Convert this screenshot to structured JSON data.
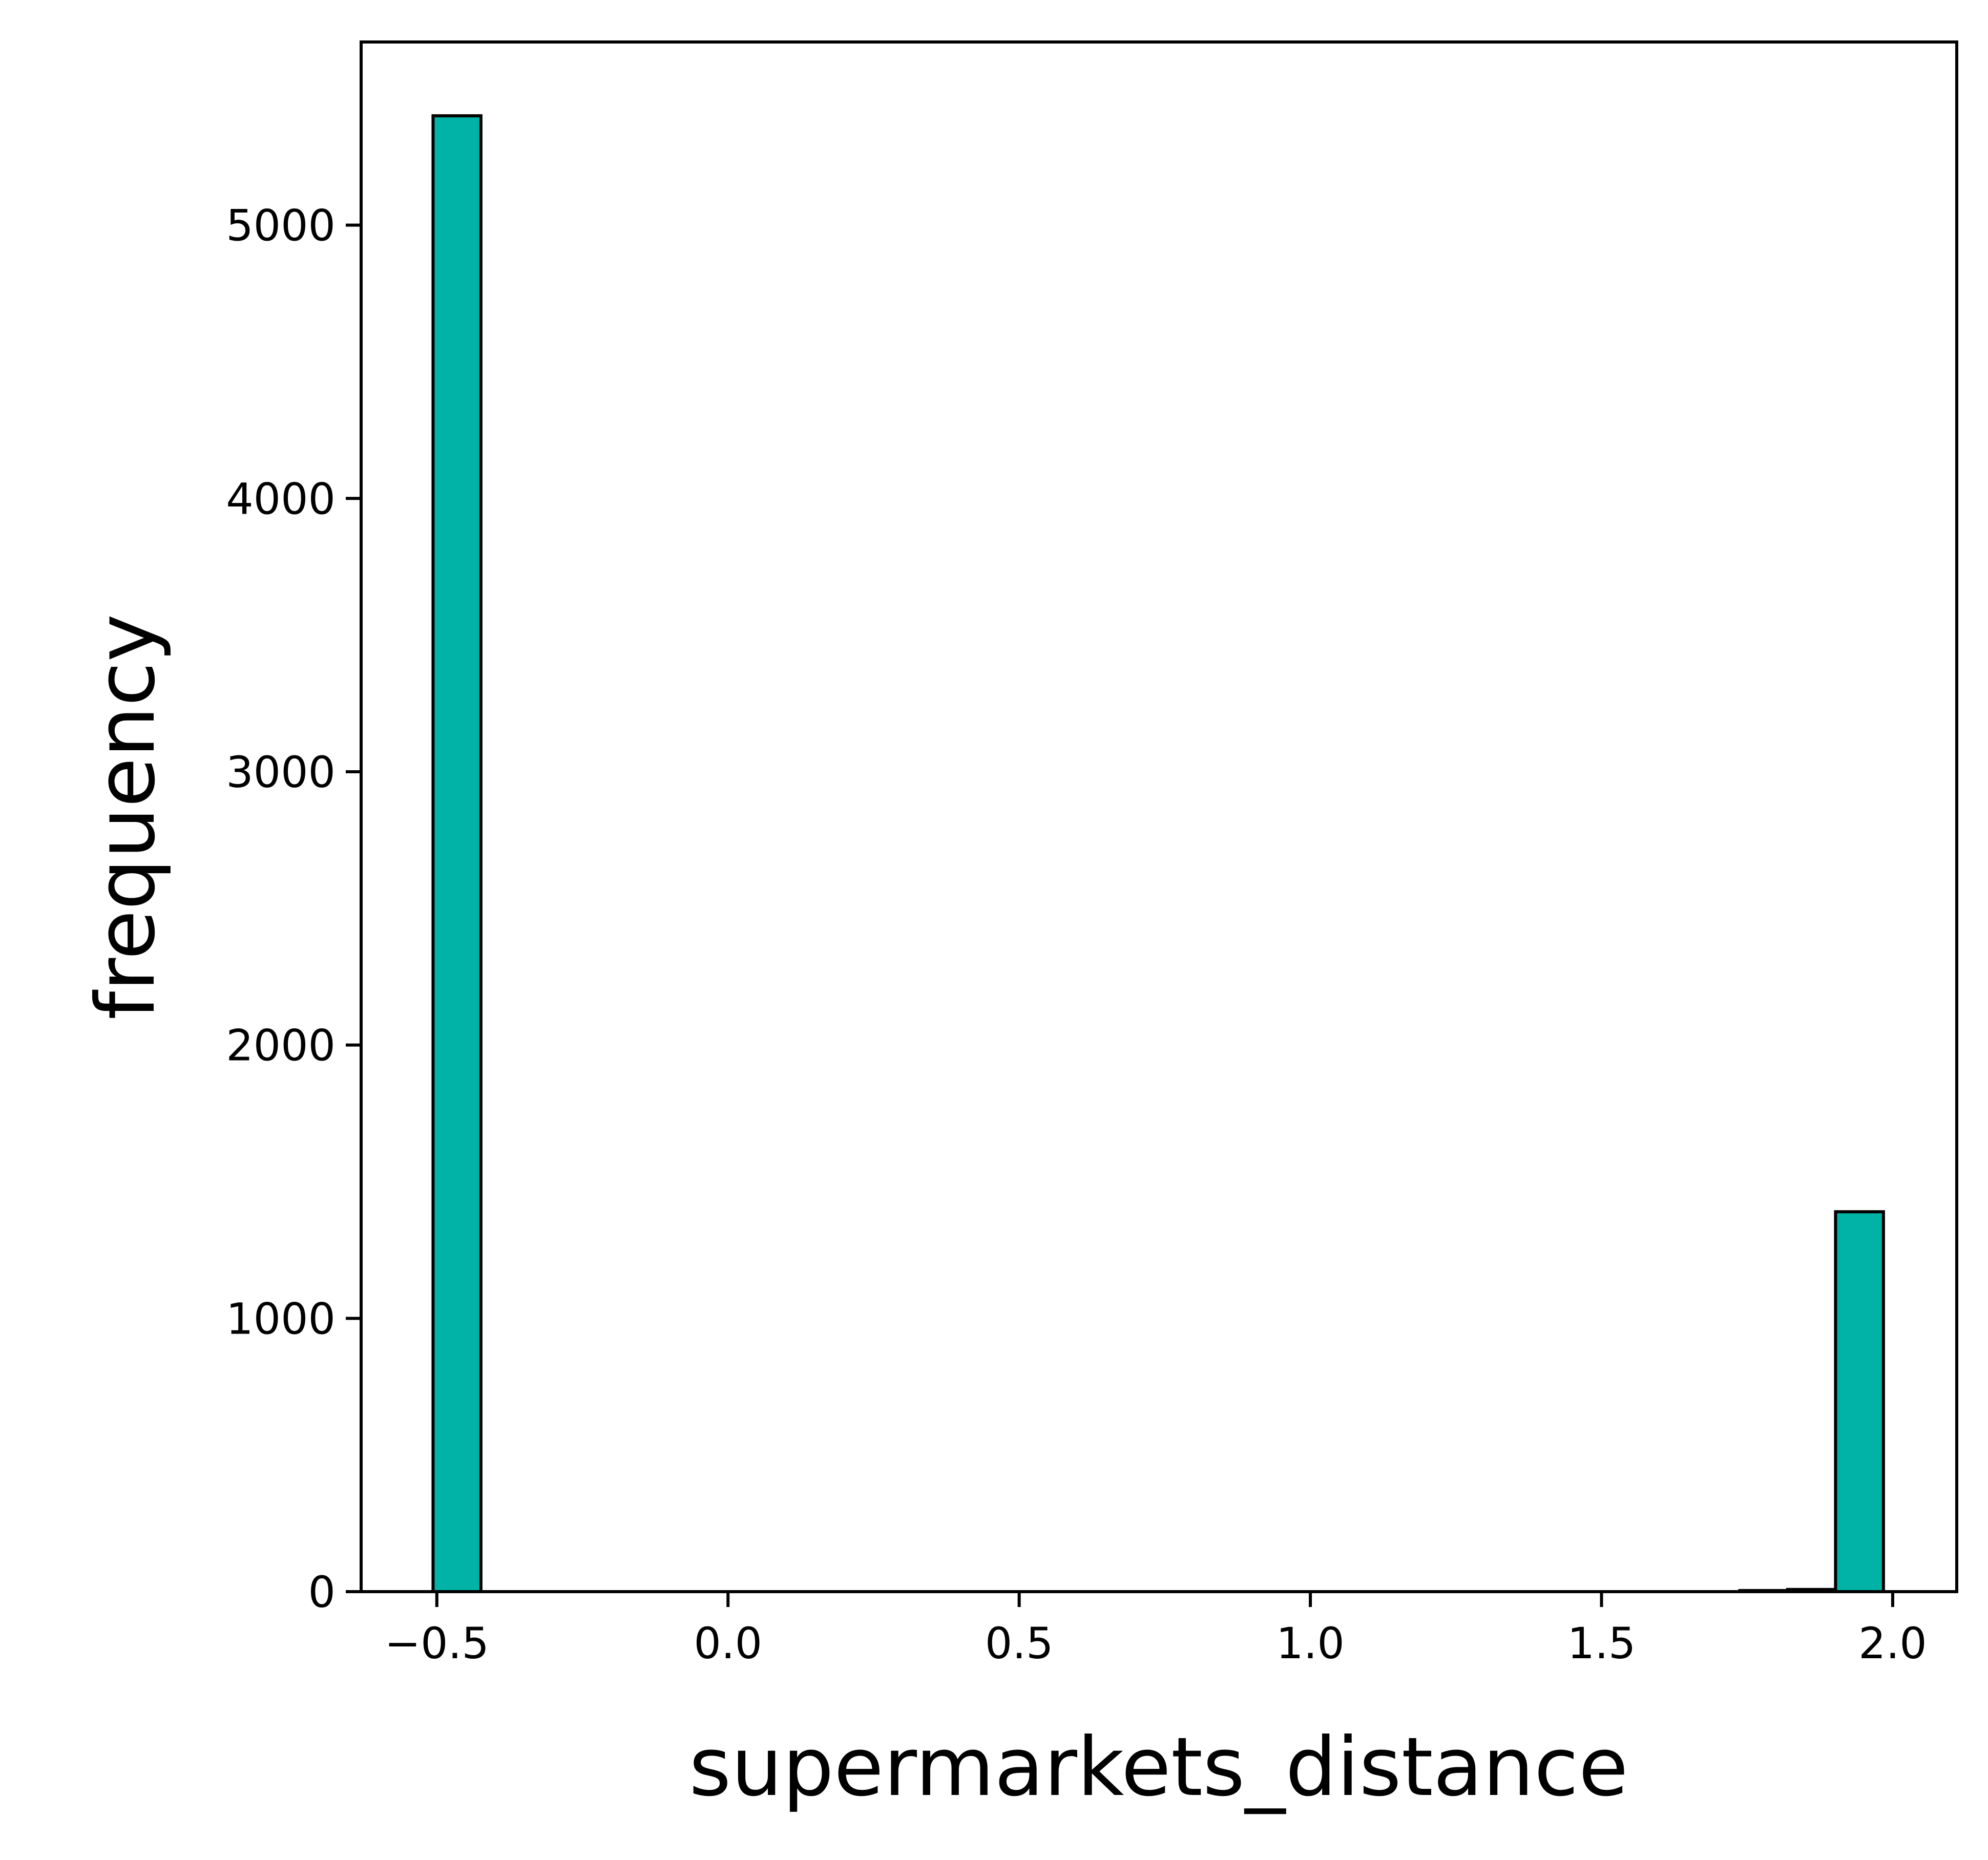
{
  "chart_data": {
    "type": "bar",
    "title": "",
    "xlabel": "supermarkets_distance",
    "ylabel": "frequency",
    "xlim": [
      -0.63,
      2.11
    ],
    "ylim": [
      0,
      5670
    ],
    "x_ticks": [
      {
        "value": -0.5,
        "label": "−0.5"
      },
      {
        "value": 0.0,
        "label": "0.0"
      },
      {
        "value": 0.5,
        "label": "0.5"
      },
      {
        "value": 1.0,
        "label": "1.0"
      },
      {
        "value": 1.5,
        "label": "1.5"
      },
      {
        "value": 2.0,
        "label": "2.0"
      }
    ],
    "y_ticks": [
      {
        "value": 0,
        "label": "0"
      },
      {
        "value": 1000,
        "label": "1000"
      },
      {
        "value": 2000,
        "label": "2000"
      },
      {
        "value": 3000,
        "label": "3000"
      },
      {
        "value": 4000,
        "label": "4000"
      },
      {
        "value": 5000,
        "label": "5000"
      }
    ],
    "bins": [
      {
        "x0": -0.5065,
        "x1": -0.4243,
        "count": 5400
      },
      {
        "x0": 1.7375,
        "x1": 1.8197,
        "count": 4
      },
      {
        "x0": 1.8197,
        "x1": 1.9019,
        "count": 8
      },
      {
        "x0": 1.9019,
        "x1": 1.9841,
        "count": 1390
      }
    ],
    "bar_color": "#00b3a6",
    "edge_color": "#000000",
    "grid": false,
    "legend": "none"
  }
}
